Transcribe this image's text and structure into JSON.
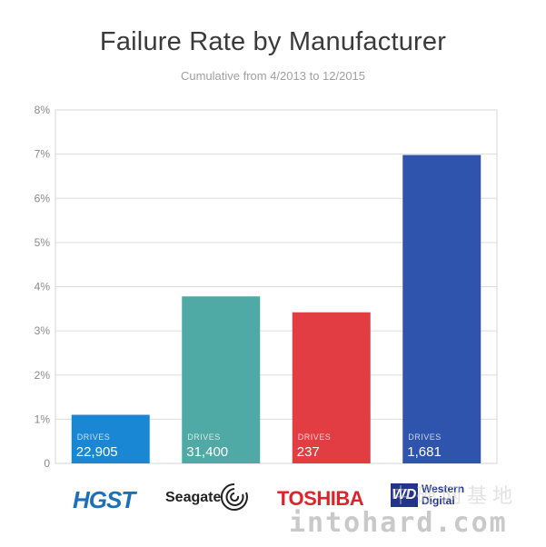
{
  "chart_data": {
    "type": "bar",
    "title": "Failure Rate by Manufacturer",
    "subtitle": "Cumulative from 4/2013 to 12/2015",
    "categories": [
      "HGST",
      "Seagate",
      "TOSHIBA",
      "Western Digital"
    ],
    "values": [
      1.1,
      3.78,
      3.42,
      6.98
    ],
    "drives_label": "DRIVES",
    "drives": [
      "22,905",
      "31,400",
      "237",
      "1,681"
    ],
    "colors": [
      "#1a87d5",
      "#4fa9a5",
      "#e23d42",
      "#2e54ae"
    ],
    "ylim": [
      0,
      8
    ],
    "y_ticks": [
      "0",
      "1%",
      "2%",
      "3%",
      "4%",
      "5%",
      "6%",
      "7%",
      "8%"
    ],
    "grid": true
  },
  "logos": {
    "hgst": "HGST",
    "seagate": "Seagate",
    "toshiba": "TOSHIBA",
    "wd_mark": "WD",
    "wd_line1": "Western",
    "wd_line2": "Digital"
  },
  "watermark": {
    "text": "intohard.com",
    "cn": "中硬网基地"
  }
}
